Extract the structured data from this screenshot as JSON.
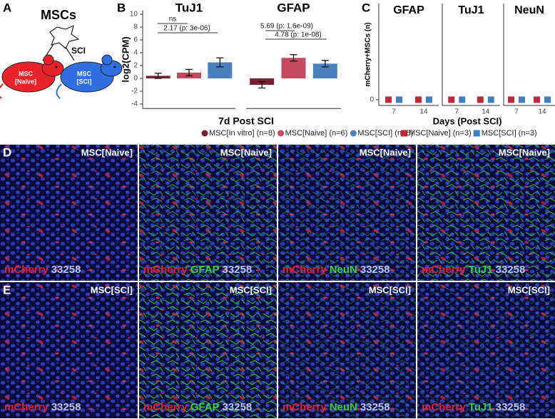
{
  "panel_labels": [
    "A",
    "B",
    "C",
    "D",
    "E"
  ],
  "panel_a": {
    "title": "MSCs",
    "arrow_label": "SCI",
    "mice": [
      {
        "lines": [
          "MSC",
          "[Naive]"
        ],
        "color": "#e8232a"
      },
      {
        "lines": [
          "MSC",
          "[SCI]"
        ],
        "color": "#2f6fe0"
      }
    ]
  },
  "chart_data": [
    {
      "type": "bar",
      "title": "7d Post SCI",
      "y_label": "log2(CPM)",
      "facets": [
        "TuJ1",
        "GFAP"
      ],
      "ylim": [
        -4.7,
        10.6
      ],
      "yticks": [
        -4,
        -2,
        0,
        2,
        4,
        6,
        8,
        10
      ],
      "series": [
        {
          "name": "MSC[In vitro] (n=8)",
          "color": "#7a1f2e",
          "values": [
            0.4,
            -1.0
          ],
          "errors": [
            0.4,
            0.5
          ]
        },
        {
          "name": "MSC[Naive] (n=6)",
          "color": "#c44a5c",
          "values": [
            0.9,
            3.2
          ],
          "errors": [
            0.5,
            0.5
          ]
        },
        {
          "name": "MSC[SCI] (n=8)",
          "color": "#4b80c0",
          "values": [
            2.5,
            2.3
          ],
          "errors": [
            0.7,
            0.5
          ]
        }
      ],
      "annotations": [
        "ns",
        "2.17 (p: 3e-06)",
        "5.69 (p: 1.6e-09)",
        "4.78 (p: 1e-08)"
      ]
    },
    {
      "type": "scatter",
      "y_label": "mCherry+MSCs (n)",
      "x_label": "Days (Post SCI)",
      "facets": [
        "GFAP",
        "TuJ1",
        "NeuN"
      ],
      "categories": [
        "7",
        "14"
      ],
      "ylim": [
        -0.06,
        1
      ],
      "yticks": [
        0
      ],
      "series": [
        {
          "name": "MSC[Naive] (n=3)",
          "color": "#c0283a",
          "values": [
            [
              0,
              0
            ],
            [
              0,
              0
            ],
            [
              0,
              0
            ]
          ]
        },
        {
          "name": "MSC[SCI] (n=3)",
          "color": "#3f7fc8",
          "values": [
            [
              0,
              0
            ],
            [
              0,
              0
            ],
            [
              0,
              0
            ]
          ]
        }
      ]
    }
  ],
  "images": {
    "rows": [
      {
        "tiles": [
          {
            "tag": "MSC[Naive]",
            "stains": [
              {
                "text": "mCherry",
                "color": "#e8202a"
              },
              {
                "text": "33258",
                "color": "#b9c3ea"
              }
            ]
          },
          {
            "tag": "MSC[Naive]",
            "stains": [
              {
                "text": "mCherry",
                "color": "#e8202a"
              },
              {
                "text": "GFAP",
                "color": "#3ad13a"
              },
              {
                "text": "33258",
                "color": "#b9c3ea"
              }
            ]
          },
          {
            "tag": "MSC[Naive]",
            "stains": [
              {
                "text": "mCherry",
                "color": "#e8202a"
              },
              {
                "text": "NeuN",
                "color": "#3ad13a"
              },
              {
                "text": "33258",
                "color": "#b9c3ea"
              }
            ]
          },
          {
            "tag": "MSC[Naive]",
            "stains": [
              {
                "text": "mCherry",
                "color": "#e8202a"
              },
              {
                "text": "TuJ1",
                "color": "#3ad13a"
              },
              {
                "text": "33258",
                "color": "#b9c3ea"
              }
            ]
          }
        ]
      },
      {
        "tiles": [
          {
            "tag": "MSC[SCI]",
            "stains": [
              {
                "text": "mCherry",
                "color": "#e8202a"
              },
              {
                "text": "33258",
                "color": "#b9c3ea"
              }
            ]
          },
          {
            "tag": "MSC[SCI]",
            "stains": [
              {
                "text": "mCherry",
                "color": "#e8202a"
              },
              {
                "text": "GFAP",
                "color": "#3ad13a"
              },
              {
                "text": "33258",
                "color": "#b9c3ea"
              }
            ]
          },
          {
            "tag": "MSC[SCI]",
            "stains": [
              {
                "text": "mCherry",
                "color": "#e8202a"
              },
              {
                "text": "NeuN",
                "color": "#3ad13a"
              },
              {
                "text": "33258",
                "color": "#b9c3ea"
              }
            ]
          },
          {
            "tag": "MSC[SCI]",
            "stains": [
              {
                "text": "mCherry",
                "color": "#e8202a"
              },
              {
                "text": "TuJ1",
                "color": "#3ad13a"
              },
              {
                "text": "33258",
                "color": "#b9c3ea"
              }
            ]
          }
        ]
      }
    ]
  }
}
